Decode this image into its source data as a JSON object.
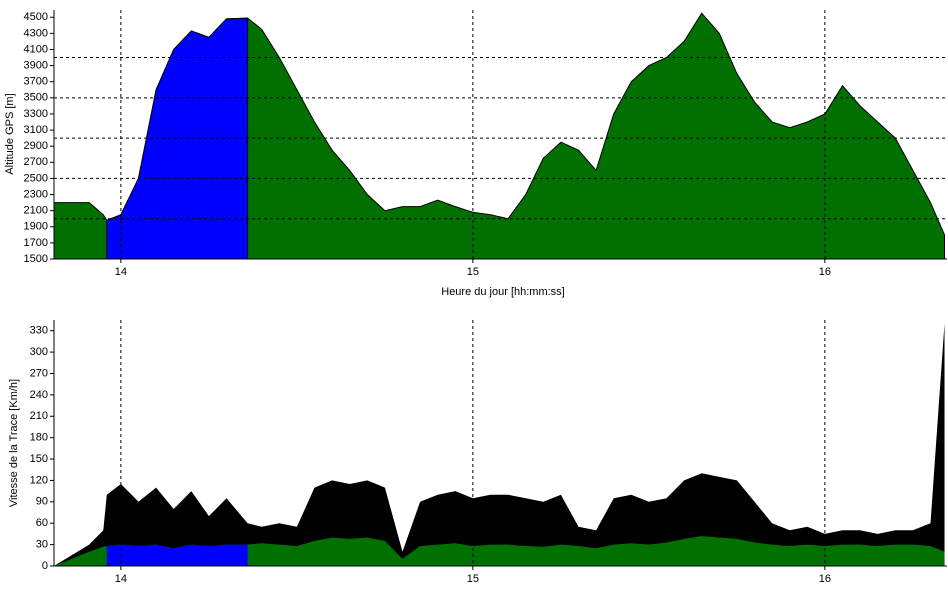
{
  "chart_data": [
    {
      "type": "area",
      "ylabel": "Altitude GPS [m]",
      "xlabel": "Heure du jour [hh:mm:ss]",
      "x": [
        13.81,
        13.91,
        13.95,
        13.96,
        14.0,
        14.05,
        14.1,
        14.15,
        14.2,
        14.25,
        14.3,
        14.36,
        14.4,
        14.45,
        14.5,
        14.55,
        14.6,
        14.65,
        14.7,
        14.75,
        14.8,
        14.85,
        14.9,
        14.95,
        15.0,
        15.05,
        15.1,
        15.15,
        15.2,
        15.25,
        15.3,
        15.35,
        15.4,
        15.45,
        15.5,
        15.55,
        15.6,
        15.65,
        15.7,
        15.75,
        15.8,
        15.85,
        15.9,
        15.95,
        16.0,
        16.05,
        16.1,
        16.15,
        16.2,
        16.25,
        16.3,
        16.34
      ],
      "series": [
        {
          "color": "#007000",
          "values": [
            2200,
            2200,
            2050,
            1980,
            2050,
            2500,
            3600,
            4100,
            4330,
            4250,
            4480,
            4490,
            4350,
            4000,
            3600,
            3200,
            2850,
            2600,
            2300,
            2100,
            2150,
            2150,
            2230,
            2150,
            2080,
            2050,
            2000,
            2300,
            2750,
            2950,
            2850,
            2600,
            3300,
            3700,
            3900,
            4000,
            4200,
            4550,
            4300,
            3800,
            3450,
            3200,
            3130,
            3200,
            3300,
            3650,
            3400,
            3200,
            3000,
            2600,
            2200,
            1800
          ]
        },
        {
          "color": "#0000ff",
          "values": [
            null,
            null,
            null,
            1980,
            2050,
            2500,
            3600,
            4100,
            4330,
            4250,
            4480,
            4490,
            null,
            null,
            null,
            null,
            null,
            null,
            null,
            null,
            null,
            null,
            null,
            null,
            null,
            null,
            null,
            null,
            null,
            null,
            null,
            null,
            null,
            null,
            null,
            null,
            null,
            null,
            null,
            null,
            null,
            null,
            null,
            null,
            null,
            null,
            null,
            null,
            null,
            null,
            null,
            null
          ]
        }
      ],
      "xlim": [
        13.81,
        16.347
      ],
      "xticks": [
        14,
        15,
        16
      ],
      "ylim": [
        1500,
        4590
      ],
      "yticks": [
        1500,
        1700,
        1900,
        2100,
        2300,
        2500,
        2700,
        2900,
        3100,
        3300,
        3500,
        3700,
        3900,
        4100,
        4300,
        4500
      ],
      "ygrid": [
        2000,
        2500,
        3000,
        3500,
        4000
      ]
    },
    {
      "type": "area",
      "ylabel": "Vitesse de la Trace [Km/h]",
      "x": [
        13.81,
        13.91,
        13.95,
        13.96,
        14.0,
        14.05,
        14.1,
        14.15,
        14.2,
        14.25,
        14.3,
        14.36,
        14.4,
        14.45,
        14.5,
        14.55,
        14.6,
        14.65,
        14.7,
        14.75,
        14.8,
        14.85,
        14.9,
        14.95,
        15.0,
        15.05,
        15.1,
        15.15,
        15.2,
        15.25,
        15.3,
        15.35,
        15.4,
        15.45,
        15.5,
        15.55,
        15.6,
        15.65,
        15.7,
        15.75,
        15.8,
        15.85,
        15.9,
        15.95,
        16.0,
        16.05,
        16.1,
        16.15,
        16.2,
        16.25,
        16.3,
        16.34
      ],
      "series": [
        {
          "color": "#000000",
          "values": [
            0,
            30,
            50,
            100,
            115,
            90,
            110,
            80,
            105,
            70,
            95,
            60,
            55,
            60,
            55,
            110,
            120,
            115,
            120,
            110,
            20,
            90,
            100,
            105,
            95,
            100,
            100,
            95,
            90,
            100,
            55,
            50,
            95,
            100,
            90,
            95,
            120,
            130,
            125,
            120,
            90,
            60,
            50,
            55,
            45,
            50,
            50,
            45,
            50,
            50,
            60,
            340
          ]
        },
        {
          "color": "#007000",
          "values": [
            0,
            20,
            27,
            28,
            30,
            28,
            30,
            25,
            30,
            28,
            30,
            30,
            32,
            30,
            28,
            35,
            40,
            38,
            40,
            35,
            10,
            28,
            30,
            32,
            28,
            30,
            30,
            28,
            27,
            30,
            28,
            25,
            30,
            32,
            30,
            33,
            38,
            42,
            40,
            38,
            33,
            30,
            28,
            30,
            28,
            30,
            30,
            28,
            30,
            30,
            28,
            20
          ]
        },
        {
          "color": "#0000ff",
          "values": [
            null,
            null,
            null,
            28,
            30,
            28,
            30,
            25,
            30,
            28,
            30,
            30,
            null,
            null,
            null,
            null,
            null,
            null,
            null,
            null,
            null,
            null,
            null,
            null,
            null,
            null,
            null,
            null,
            null,
            null,
            null,
            null,
            null,
            null,
            null,
            null,
            null,
            null,
            null,
            null,
            null,
            null,
            null,
            null,
            null,
            null,
            null,
            null,
            null,
            null,
            null,
            null
          ]
        }
      ],
      "xlim": [
        13.81,
        16.347
      ],
      "xticks": [
        14,
        15,
        16
      ],
      "ylim": [
        0,
        345
      ],
      "yticks": [
        0,
        30,
        60,
        90,
        120,
        150,
        180,
        210,
        240,
        270,
        300,
        330
      ]
    }
  ]
}
